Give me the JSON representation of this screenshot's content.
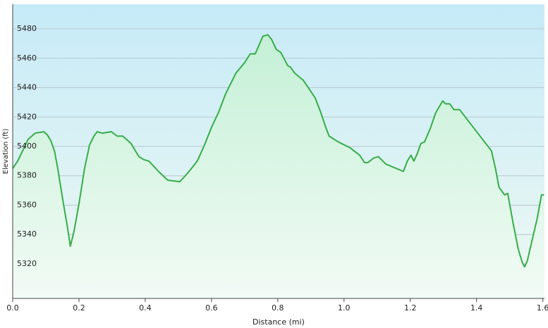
{
  "chart_data": {
    "type": "area",
    "x_label": "Distance  (mi)",
    "y_label": "Elevation (ft)",
    "color": "#35ad47",
    "x": [
      0,
      0.015,
      0.047,
      0.068,
      0.094,
      0.104,
      0.115,
      0.126,
      0.136,
      0.153,
      0.166,
      0.174,
      0.185,
      0.2,
      0.217,
      0.232,
      0.245,
      0.255,
      0.27,
      0.298,
      0.315,
      0.332,
      0.357,
      0.381,
      0.396,
      0.411,
      0.44,
      0.468,
      0.504,
      0.521,
      0.536,
      0.557,
      0.579,
      0.6,
      0.621,
      0.643,
      0.674,
      0.7,
      0.717,
      0.732,
      0.755,
      0.77,
      0.781,
      0.796,
      0.809,
      0.83,
      0.838,
      0.851,
      0.877,
      0.898,
      0.913,
      0.93,
      0.945,
      0.955,
      0.983,
      1.019,
      1.047,
      1.062,
      1.072,
      1.089,
      1.104,
      1.126,
      1.179,
      1.191,
      1.202,
      1.211,
      1.221,
      1.232,
      1.243,
      1.26,
      1.277,
      1.298,
      1.306,
      1.319,
      1.332,
      1.349,
      1.445,
      1.457,
      1.468,
      1.485,
      1.494,
      1.511,
      1.526,
      1.538,
      1.545,
      1.553,
      1.583,
      1.596,
      1.604
    ],
    "values": [
      5385,
      5390,
      5405,
      5409,
      5410,
      5408,
      5404,
      5397,
      5385,
      5361,
      5344,
      5332,
      5342,
      5361,
      5385,
      5401,
      5407,
      5410,
      5409,
      5410,
      5407,
      5407,
      5402,
      5393,
      5391,
      5390,
      5383,
      5377,
      5376,
      5380,
      5384,
      5390,
      5401,
      5413,
      5423,
      5436,
      5450,
      5457,
      5463,
      5463,
      5475,
      5476,
      5473,
      5466,
      5464,
      5455,
      5454,
      5450,
      5445,
      5438,
      5433,
      5423,
      5413,
      5407,
      5403,
      5399,
      5394,
      5389,
      5389,
      5392,
      5393,
      5388,
      5383,
      5390,
      5394,
      5390,
      5395,
      5402,
      5403,
      5412,
      5423,
      5431,
      5429,
      5429,
      5425,
      5425,
      5397,
      5385,
      5372,
      5367,
      5368,
      5347,
      5330,
      5321,
      5318,
      5322,
      5351,
      5367,
      5367
    ],
    "xlim": [
      0,
      1.605
    ],
    "ylim": [
      5296.5,
      5496.8
    ],
    "xticks": [
      {
        "value": 0,
        "label": "0.0"
      },
      0.2,
      0.4,
      0.6,
      0.8,
      {
        "value": 1,
        "label": "1.0"
      },
      1.2,
      1.4,
      1.6
    ],
    "yticks": [
      5320,
      5340,
      5360,
      5380,
      5400,
      5420,
      5440,
      5460,
      5480
    ],
    "grid": true
  }
}
